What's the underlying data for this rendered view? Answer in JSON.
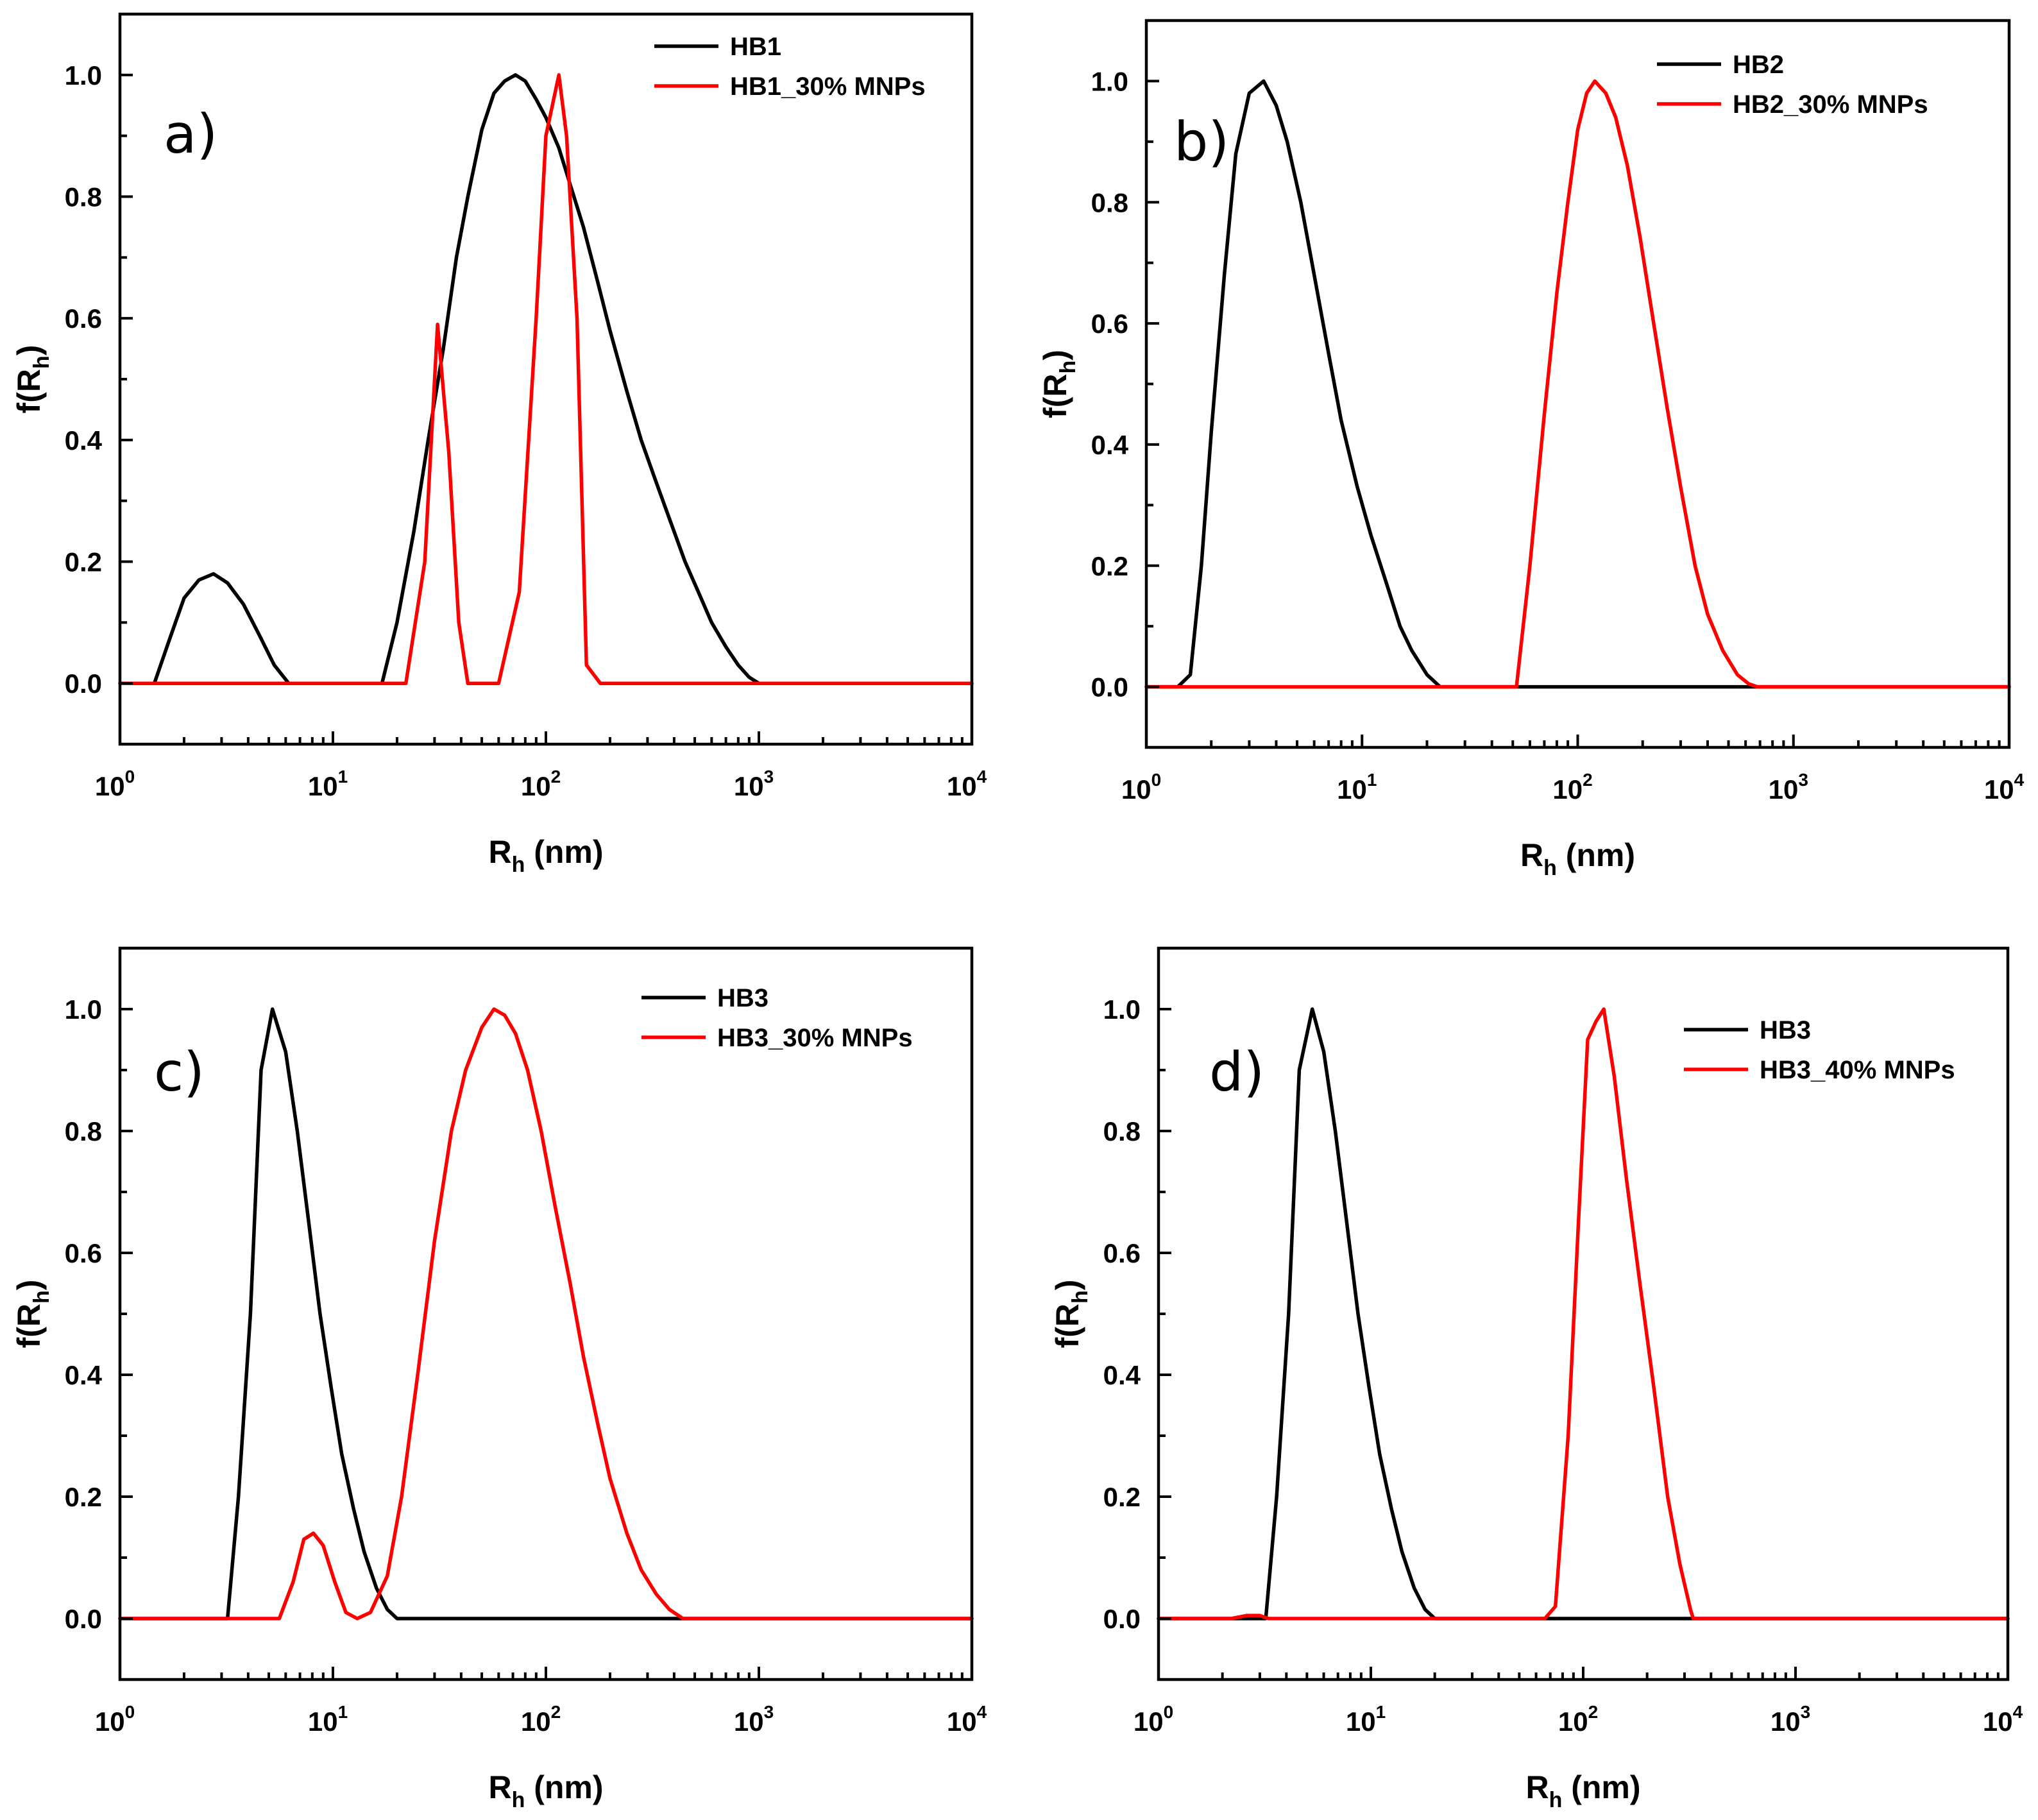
{
  "figure": {
    "colors": {
      "black": "#000000",
      "red": "#ff0000"
    }
  },
  "chart_data": [
    {
      "type": "line",
      "panel_label": "a)",
      "xscale": "log",
      "xlim": [
        1,
        10000
      ],
      "ylim": [
        -0.1,
        1.1
      ],
      "xticks": [
        1,
        10,
        100,
        1000,
        10000
      ],
      "xtick_labels": [
        {
          "base": "10",
          "exp": "0"
        },
        {
          "base": "10",
          "exp": "1"
        },
        {
          "base": "10",
          "exp": "2"
        },
        {
          "base": "10",
          "exp": "3"
        },
        {
          "base": "10",
          "exp": "4"
        }
      ],
      "yticks": [
        0.0,
        0.2,
        0.4,
        0.6,
        0.8,
        1.0
      ],
      "ytick_labels": [
        "0.0",
        "0.2",
        "0.4",
        "0.6",
        "0.8",
        "1.0"
      ],
      "xlabel": {
        "main": "R",
        "sub": "h",
        "rest": " (nm)"
      },
      "ylabel": {
        "pre": "f(R",
        "sub": "h",
        "post": ")"
      },
      "legend_position": "top-right",
      "series": [
        {
          "name": "HB1",
          "color": "#000000",
          "x": [
            1,
            1.45,
            1.7,
            2.0,
            2.35,
            2.75,
            3.2,
            3.8,
            4.5,
            5.3,
            6.2,
            17,
            20,
            24,
            28,
            33,
            38,
            43,
            50,
            57,
            64,
            72,
            80,
            90,
            100,
            115,
            130,
            150,
            175,
            200,
            240,
            280,
            330,
            390,
            450,
            520,
            600,
            700,
            800,
            900,
            1000,
            10000
          ],
          "values": [
            0,
            0,
            0.07,
            0.14,
            0.17,
            0.18,
            0.165,
            0.13,
            0.08,
            0.03,
            0,
            0,
            0.1,
            0.25,
            0.4,
            0.55,
            0.7,
            0.8,
            0.91,
            0.97,
            0.99,
            1.0,
            0.99,
            0.96,
            0.93,
            0.88,
            0.82,
            0.75,
            0.66,
            0.58,
            0.48,
            0.4,
            0.33,
            0.26,
            0.2,
            0.15,
            0.1,
            0.06,
            0.03,
            0.01,
            0,
            0
          ]
        },
        {
          "name": "HB1_30% MNPs",
          "color": "#ff0000",
          "x": [
            1,
            22,
            27,
            31,
            35,
            39,
            43,
            60,
            75,
            90,
            100,
            115,
            125,
            140,
            155,
            180,
            10000
          ],
          "values": [
            0,
            0,
            0.2,
            0.59,
            0.38,
            0.1,
            0,
            0,
            0.15,
            0.6,
            0.9,
            1.0,
            0.9,
            0.6,
            0.03,
            0,
            0
          ]
        }
      ]
    },
    {
      "type": "line",
      "panel_label": "b)",
      "xscale": "log",
      "xlim": [
        1,
        10000
      ],
      "ylim": [
        -0.1,
        1.1
      ],
      "xticks": [
        1,
        10,
        100,
        1000,
        10000
      ],
      "xtick_labels": [
        {
          "base": "10",
          "exp": "0"
        },
        {
          "base": "10",
          "exp": "1"
        },
        {
          "base": "10",
          "exp": "2"
        },
        {
          "base": "10",
          "exp": "3"
        },
        {
          "base": "10",
          "exp": "4"
        }
      ],
      "yticks": [
        0.0,
        0.2,
        0.4,
        0.6,
        0.8,
        1.0
      ],
      "ytick_labels": [
        "0.0",
        "0.2",
        "0.4",
        "0.6",
        "0.8",
        "1.0"
      ],
      "xlabel": {
        "main": "R",
        "sub": "h",
        "rest": " (nm)"
      },
      "ylabel": {
        "pre": "f(R",
        "sub": "h",
        "post": ")"
      },
      "legend_position": "top-right",
      "series": [
        {
          "name": "HB2",
          "color": "#000000",
          "x": [
            1,
            1.4,
            1.6,
            1.8,
            2.0,
            2.3,
            2.6,
            3.0,
            3.5,
            4.0,
            4.5,
            5.2,
            6.0,
            7.0,
            8.0,
            9.5,
            11,
            13,
            15,
            17,
            20,
            23,
            27,
            10000
          ],
          "values": [
            0,
            0,
            0.02,
            0.2,
            0.42,
            0.68,
            0.88,
            0.98,
            1.0,
            0.96,
            0.9,
            0.8,
            0.68,
            0.55,
            0.44,
            0.33,
            0.25,
            0.17,
            0.1,
            0.06,
            0.02,
            0,
            0,
            0
          ]
        },
        {
          "name": "HB2_30% MNPs",
          "color": "#ff0000",
          "x": [
            1,
            52,
            60,
            70,
            80,
            90,
            100,
            110,
            120,
            135,
            150,
            170,
            195,
            225,
            260,
            300,
            350,
            400,
            470,
            550,
            620,
            680,
            10000
          ],
          "values": [
            0,
            0,
            0.2,
            0.45,
            0.65,
            0.8,
            0.92,
            0.98,
            1.0,
            0.98,
            0.94,
            0.86,
            0.74,
            0.6,
            0.46,
            0.33,
            0.2,
            0.12,
            0.06,
            0.02,
            0.005,
            0,
            0
          ]
        }
      ]
    },
    {
      "type": "line",
      "panel_label": "c)",
      "xscale": "log",
      "xlim": [
        1,
        10000
      ],
      "ylim": [
        -0.1,
        1.1
      ],
      "xticks": [
        1,
        10,
        100,
        1000,
        10000
      ],
      "xtick_labels": [
        {
          "base": "10",
          "exp": "0"
        },
        {
          "base": "10",
          "exp": "1"
        },
        {
          "base": "10",
          "exp": "2"
        },
        {
          "base": "10",
          "exp": "3"
        },
        {
          "base": "10",
          "exp": "4"
        }
      ],
      "yticks": [
        0.0,
        0.2,
        0.4,
        0.6,
        0.8,
        1.0
      ],
      "ytick_labels": [
        "0.0",
        "0.2",
        "0.4",
        "0.6",
        "0.8",
        "1.0"
      ],
      "xlabel": {
        "main": "R",
        "sub": "h",
        "rest": " (nm)"
      },
      "ylabel": {
        "pre": "f(R",
        "sub": "h",
        "post": ")"
      },
      "legend_position": "top-right",
      "series": [
        {
          "name": "HB3",
          "color": "#000000",
          "x": [
            1,
            3.2,
            3.6,
            4.1,
            4.6,
            5.2,
            6.0,
            6.8,
            7.7,
            8.7,
            9.8,
            11,
            12.5,
            14,
            16,
            18,
            20,
            10000
          ],
          "values": [
            0,
            0,
            0.2,
            0.5,
            0.9,
            1.0,
            0.93,
            0.8,
            0.65,
            0.5,
            0.38,
            0.27,
            0.18,
            0.11,
            0.05,
            0.015,
            0,
            0
          ]
        },
        {
          "name": "HB3_30% MNPs",
          "color": "#ff0000",
          "x": [
            1,
            5.6,
            6.5,
            7.3,
            8.1,
            9.0,
            10.2,
            11.5,
            13,
            15,
            18,
            21,
            25,
            30,
            36,
            42,
            50,
            57,
            64,
            72,
            82,
            95,
            110,
            130,
            150,
            175,
            200,
            240,
            280,
            330,
            380,
            440,
            10000
          ],
          "values": [
            0,
            0,
            0.06,
            0.13,
            0.14,
            0.12,
            0.06,
            0.01,
            0,
            0.01,
            0.07,
            0.2,
            0.4,
            0.62,
            0.8,
            0.9,
            0.97,
            1.0,
            0.99,
            0.96,
            0.9,
            0.8,
            0.68,
            0.55,
            0.43,
            0.32,
            0.23,
            0.14,
            0.08,
            0.04,
            0.015,
            0,
            0
          ]
        }
      ]
    },
    {
      "type": "line",
      "panel_label": "d)",
      "xscale": "log",
      "xlim": [
        1,
        10000
      ],
      "ylim": [
        -0.1,
        1.1
      ],
      "xticks": [
        1,
        10,
        100,
        1000,
        10000
      ],
      "xtick_labels": [
        {
          "base": "10",
          "exp": "0"
        },
        {
          "base": "10",
          "exp": "1"
        },
        {
          "base": "10",
          "exp": "2"
        },
        {
          "base": "10",
          "exp": "3"
        },
        {
          "base": "10",
          "exp": "4"
        }
      ],
      "yticks": [
        0.0,
        0.2,
        0.4,
        0.6,
        0.8,
        1.0
      ],
      "ytick_labels": [
        "0.0",
        "0.2",
        "0.4",
        "0.6",
        "0.8",
        "1.0"
      ],
      "xlabel": {
        "main": "R",
        "sub": "h",
        "rest": " (nm)"
      },
      "ylabel": {
        "pre": "f(R",
        "sub": "h",
        "post": ")"
      },
      "legend_position": "top-right",
      "series": [
        {
          "name": "HB3",
          "color": "#000000",
          "x": [
            1,
            3.2,
            3.6,
            4.1,
            4.6,
            5.3,
            6.0,
            6.8,
            7.7,
            8.7,
            9.8,
            11,
            12.5,
            14,
            16,
            18,
            20,
            10000
          ],
          "values": [
            0,
            0,
            0.2,
            0.5,
            0.9,
            1.0,
            0.93,
            0.8,
            0.65,
            0.5,
            0.38,
            0.27,
            0.18,
            0.11,
            0.05,
            0.015,
            0,
            0
          ]
        },
        {
          "name": "HB3_40% MNPs",
          "color": "#ff0000",
          "x": [
            1,
            2.2,
            2.6,
            3.0,
            3.3,
            66,
            74,
            85,
            95,
            105,
            115,
            125,
            140,
            160,
            185,
            215,
            250,
            285,
            320,
            330,
            10000
          ],
          "values": [
            0,
            0,
            0.005,
            0.005,
            0,
            0,
            0.02,
            0.3,
            0.65,
            0.95,
            0.98,
            1.0,
            0.89,
            0.72,
            0.55,
            0.38,
            0.2,
            0.09,
            0.015,
            0,
            0
          ]
        }
      ]
    }
  ]
}
